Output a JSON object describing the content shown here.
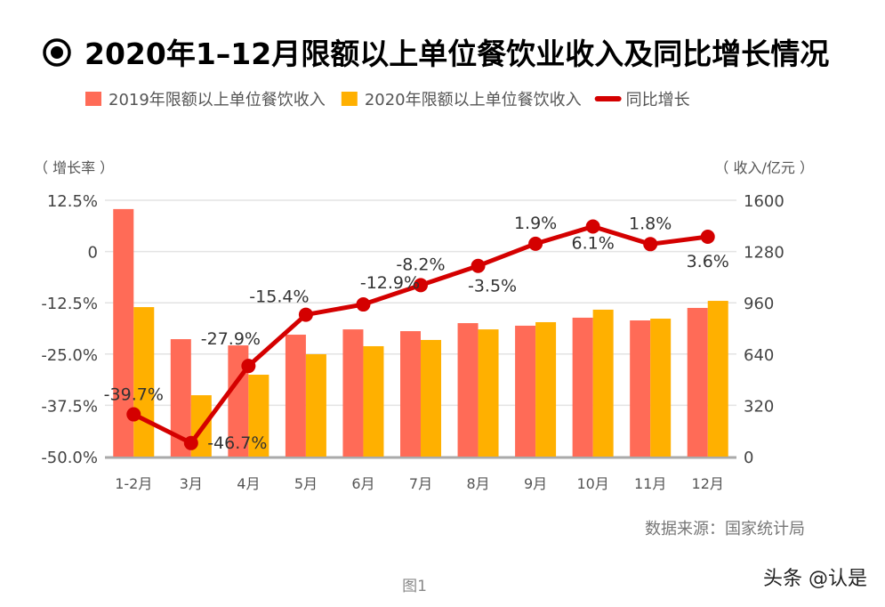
{
  "chart_data": {
    "type": "bar+line",
    "title": "2020年1–12月限额以上单位餐饮业收入及同比增长情况",
    "categories": [
      "1-2月",
      "3月",
      "4月",
      "5月",
      "6月",
      "7月",
      "8月",
      "9月",
      "10月",
      "11月",
      "12月"
    ],
    "series": [
      {
        "name": "2019年限额以上单位餐饮收入",
        "type": "bar",
        "axis": "right",
        "color": "#FF6B57",
        "values": [
          1545,
          733,
          694,
          761,
          794,
          783,
          833,
          817,
          867,
          850,
          928
        ]
      },
      {
        "name": "2020年限额以上单位餐饮收入",
        "type": "bar",
        "axis": "right",
        "color": "#FFB000",
        "values": [
          933,
          383,
          511,
          639,
          689,
          728,
          794,
          839,
          917,
          861,
          972
        ]
      },
      {
        "name": "同比增长",
        "type": "line",
        "axis": "left",
        "color": "#D40000",
        "values": [
          -39.7,
          -46.7,
          -27.9,
          -15.4,
          -12.9,
          -8.2,
          -3.5,
          1.9,
          6.1,
          1.8,
          3.6
        ],
        "labels": [
          "-39.7%",
          "-46.7%",
          "-27.9%",
          "-15.4%",
          "-12.9%",
          "-8.2%",
          "-3.5%",
          "1.9%",
          "6.1%",
          "1.8%",
          "3.6%"
        ]
      }
    ],
    "left_axis": {
      "label": "（ 增长率 ）",
      "range": [
        -50,
        12.5
      ],
      "ticks": [
        "12.5%",
        "0",
        "-12.5%",
        "-25.0%",
        "-37.5%",
        "-50.0%"
      ]
    },
    "right_axis": {
      "label": "（ 收入/亿元 ）",
      "range": [
        0,
        1600
      ],
      "ticks": [
        "1600",
        "1280",
        "960",
        "640",
        "320",
        "0"
      ]
    },
    "grid": true,
    "legend": "top"
  },
  "source": "数据来源：国家统计局",
  "caption": "图1",
  "watermark": "头条 @认是"
}
